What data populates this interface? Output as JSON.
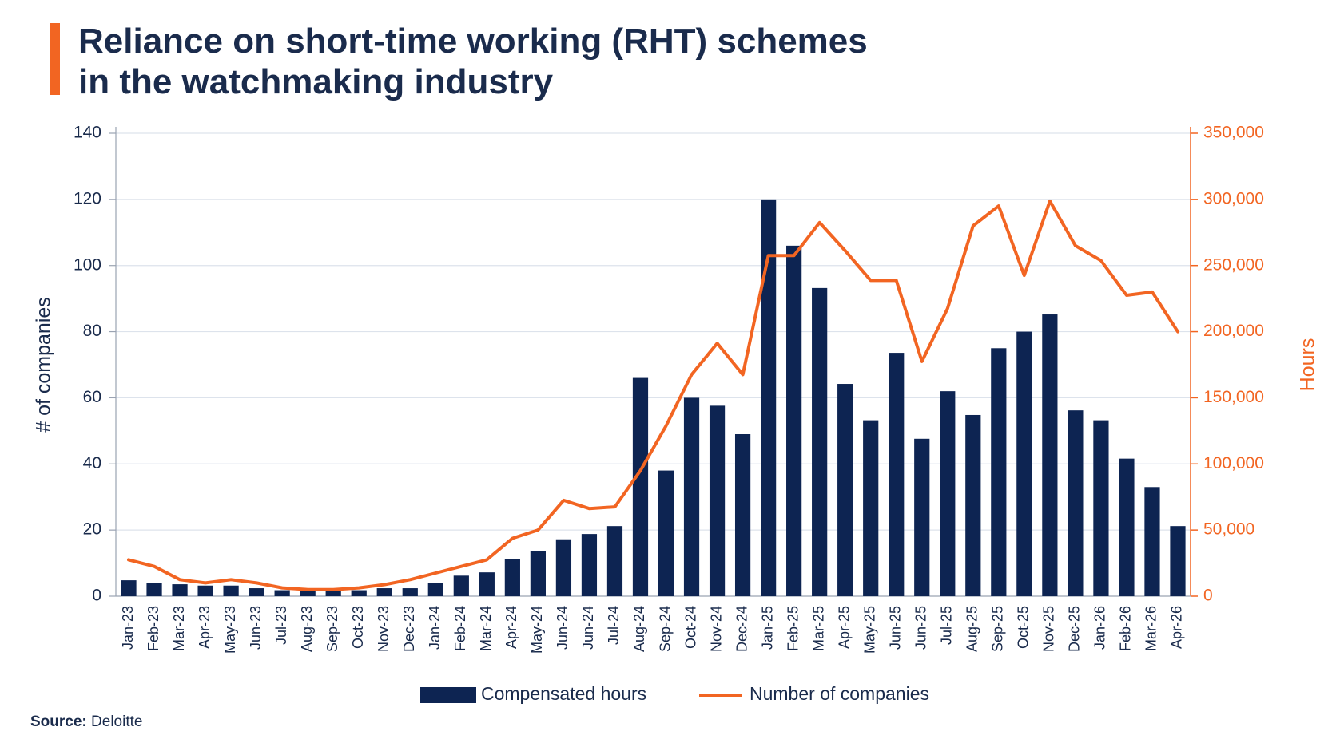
{
  "chart_data": {
    "type": "combo",
    "title": [
      "Reliance on short-time working (RHT) schemes",
      "in the watchmaking industry"
    ],
    "y_label": "# of companies",
    "y2_label": "Hours",
    "source_label": "Source:",
    "source": "Deloitte",
    "categories": [
      "Jan-23",
      "Feb-23",
      "Mar-23",
      "Apr-23",
      "May-23",
      "Jun-23",
      "Jul-23",
      "Aug-23",
      "Sep-23",
      "Oct-23",
      "Nov-23",
      "Dec-23",
      "Jan-24",
      "Feb-24",
      "Mar-24",
      "Apr-24",
      "May-24",
      "Jun-24",
      "Jun-24",
      "Jul-24",
      "Aug-24",
      "Sep-24",
      "Oct-24",
      "Nov-24",
      "Dec-24",
      "Jan-25",
      "Feb-25",
      "Mar-25",
      "Apr-25",
      "May-25",
      "Jun-25",
      "Jun-25",
      "Jul-25",
      "Aug-25",
      "Sep-25",
      "Oct-25",
      "Nov-25",
      "Dec-25",
      "Jan-26",
      "Feb-26",
      "Mar-26",
      "Apr-26"
    ],
    "series": [
      {
        "name": "Compensated hours",
        "type": "bar",
        "axis": "y2",
        "color": "#0d2452",
        "values": [
          12000,
          10000,
          9000,
          8000,
          8000,
          6000,
          4500,
          4500,
          4000,
          4500,
          6000,
          6000,
          10000,
          15500,
          18000,
          28000,
          34000,
          43000,
          47000,
          53000,
          165000,
          95000,
          150000,
          144000,
          122500,
          300000,
          265000,
          233000,
          160500,
          133000,
          184000,
          119000,
          155000,
          137000,
          187500,
          200000,
          213000,
          140500,
          133000,
          104000,
          82500,
          53000
        ]
      },
      {
        "name": "Number of companies",
        "type": "line",
        "color": "#f26522",
        "values": [
          11,
          9,
          5,
          4,
          5,
          4,
          2.5,
          2,
          2,
          2.5,
          3.5,
          5,
          7,
          9,
          11,
          17.5,
          20,
          29,
          26.5,
          27,
          38,
          51.5,
          67,
          76.5,
          67,
          103,
          103,
          113,
          104.5,
          95.5,
          95.5,
          71,
          87,
          112,
          118,
          97,
          119.5,
          106,
          101.5,
          91,
          92,
          80
        ]
      }
    ],
    "ylim": [
      0,
      140
    ],
    "yticks": [
      0,
      20,
      40,
      60,
      80,
      100,
      120,
      140
    ],
    "y2lim": [
      0,
      350000
    ],
    "y2ticks": [
      0,
      {
        "value": 50000,
        "label": "50,000"
      },
      {
        "value": 100000,
        "label": "100,000"
      },
      {
        "value": 150000,
        "label": "150,000"
      },
      {
        "value": 200000,
        "label": "200,000"
      },
      {
        "value": 250000,
        "label": "250,000"
      },
      {
        "value": 300000,
        "label": "300,000"
      },
      {
        "value": 350000,
        "label": "350,000"
      }
    ],
    "y_color": "#1a2b4c",
    "y2_color": "#f26522",
    "grid": true
  }
}
